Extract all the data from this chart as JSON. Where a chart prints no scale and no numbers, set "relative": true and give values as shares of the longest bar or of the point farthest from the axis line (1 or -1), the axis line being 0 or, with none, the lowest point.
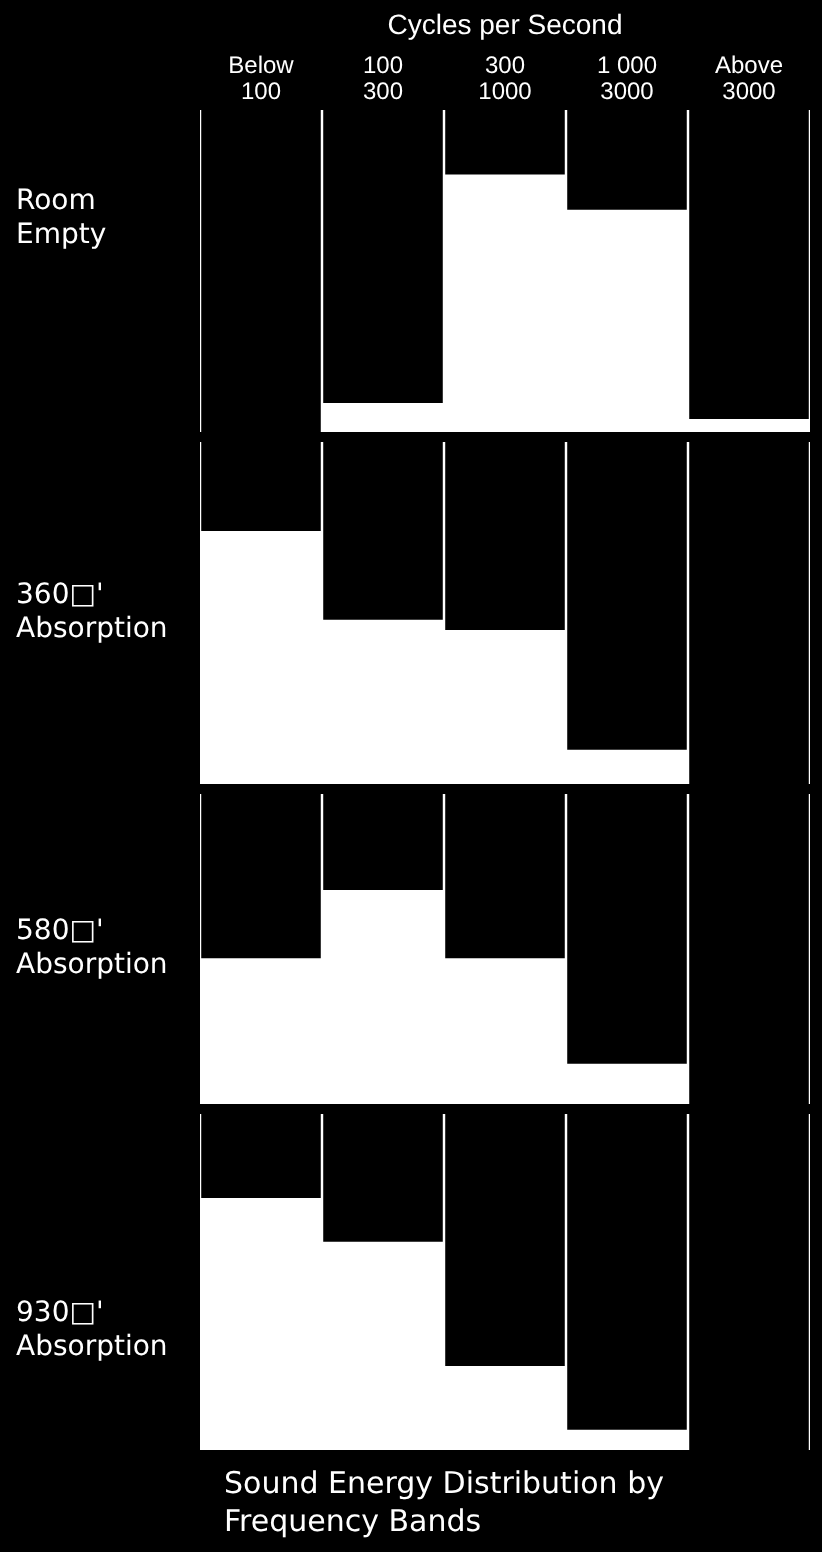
{
  "chart_data": [
    {
      "type": "bar",
      "relative": true,
      "xlabel": "Cycles per Second",
      "ylabel": "Room Empty",
      "categories": [
        "Below 100",
        "100 300",
        "300 1000",
        "1 000 3000",
        "Above 3000"
      ],
      "series": [
        {
          "color": "#000000",
          "values": [
            -1,
            -0.91,
            -0.2,
            -0.31,
            -0.96
          ]
        }
      ]
    },
    {
      "type": "bar",
      "relative": true,
      "ylabel": "360□' Absorption",
      "categories": [
        null,
        null,
        null,
        null,
        null
      ],
      "series": [
        {
          "color": "#000000",
          "values": [
            -0.26,
            -0.52,
            -0.55,
            -0.9,
            -1
          ]
        }
      ]
    },
    {
      "type": "bar",
      "relative": true,
      "ylabel": "580□' Absorption",
      "categories": [
        null,
        null,
        null,
        null,
        null
      ],
      "series": [
        {
          "color": "#000000",
          "values": [
            -0.53,
            -0.31,
            -0.53,
            -0.87,
            -1
          ]
        }
      ]
    },
    {
      "type": "bar",
      "relative": true,
      "ylabel": "930□' Absorption",
      "categories": [
        null,
        null,
        null,
        null,
        null
      ],
      "series": [
        {
          "color": "#000000",
          "values": [
            -0.25,
            -0.38,
            -0.75,
            -0.94,
            -1
          ]
        }
      ],
      "annotations": [
        "Sound Energy Distribution by Frequency Bands"
      ]
    }
  ]
}
